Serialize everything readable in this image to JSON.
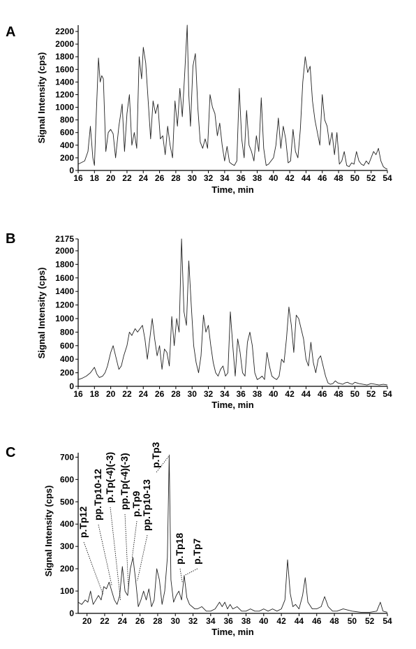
{
  "chart_data": [
    {
      "panel": "A",
      "type": "line",
      "xlabel": "Time, min",
      "ylabel": "Signal Intensity (cps)",
      "xlim": [
        16,
        54
      ],
      "ylim": [
        0,
        2300
      ],
      "xticks": [
        16,
        18,
        20,
        22,
        24,
        26,
        28,
        30,
        32,
        34,
        36,
        38,
        40,
        42,
        44,
        46,
        48,
        50,
        52,
        54
      ],
      "yticks": [
        0,
        200,
        400,
        600,
        800,
        1000,
        1200,
        1400,
        1600,
        1800,
        2000,
        2200
      ],
      "series": [
        {
          "x": [
            16.0,
            16.8,
            17.2,
            17.5,
            17.8,
            18.0,
            18.2,
            18.5,
            18.7,
            18.9,
            19.1,
            19.4,
            19.7,
            20.0,
            20.3,
            20.6,
            21.0,
            21.4,
            21.7,
            22.0,
            22.3,
            22.6,
            22.9,
            23.2,
            23.5,
            23.8,
            24.0,
            24.3,
            24.6,
            24.9,
            25.2,
            25.5,
            25.8,
            26.1,
            26.4,
            26.7,
            27.0,
            27.3,
            27.6,
            27.9,
            28.2,
            28.5,
            28.8,
            29.1,
            29.4,
            29.6,
            29.8,
            30.1,
            30.4,
            30.7,
            31.0,
            31.3,
            31.6,
            31.9,
            32.2,
            32.5,
            32.8,
            33.1,
            33.4,
            33.7,
            34.0,
            34.3,
            34.6,
            34.9,
            35.2,
            35.5,
            35.8,
            36.1,
            36.4,
            36.7,
            37.0,
            37.3,
            37.6,
            37.9,
            38.2,
            38.5,
            38.8,
            39.1,
            39.4,
            39.7,
            40.0,
            40.3,
            40.6,
            40.9,
            41.2,
            41.5,
            41.8,
            42.1,
            42.4,
            42.7,
            43.0,
            43.3,
            43.6,
            43.9,
            44.2,
            44.5,
            44.8,
            45.1,
            45.4,
            45.7,
            46.0,
            46.3,
            46.6,
            46.9,
            47.2,
            47.5,
            47.8,
            48.1,
            48.4,
            48.7,
            49.0,
            49.3,
            49.6,
            49.9,
            50.2,
            50.5,
            50.8,
            51.1,
            51.4,
            51.7,
            52.0,
            52.3,
            52.6,
            52.9,
            53.2,
            53.5,
            53.8,
            54.0
          ],
          "y": [
            100,
            150,
            300,
            700,
            200,
            80,
            800,
            1780,
            1400,
            1500,
            1450,
            300,
            600,
            650,
            580,
            200,
            700,
            1050,
            300,
            900,
            1200,
            400,
            600,
            350,
            1800,
            1450,
            1950,
            1700,
            1100,
            500,
            1100,
            900,
            1050,
            500,
            550,
            250,
            700,
            400,
            200,
            1100,
            700,
            1300,
            850,
            1550,
            2300,
            1200,
            700,
            1650,
            1850,
            1000,
            450,
            350,
            500,
            350,
            1200,
            1000,
            900,
            550,
            750,
            400,
            150,
            380,
            130,
            100,
            80,
            150,
            1300,
            500,
            200,
            950,
            400,
            300,
            150,
            550,
            300,
            1150,
            350,
            80,
            100,
            150,
            200,
            400,
            830,
            350,
            700,
            500,
            120,
            150,
            650,
            300,
            200,
            650,
            1400,
            1800,
            1550,
            1650,
            1100,
            800,
            600,
            400,
            1200,
            800,
            700,
            400,
            600,
            250,
            600,
            100,
            150,
            300,
            80,
            60,
            120,
            100,
            300,
            150,
            100,
            80,
            150,
            100,
            200,
            300,
            250,
            350,
            150,
            60,
            30,
            20
          ]
        }
      ]
    },
    {
      "panel": "B",
      "type": "line",
      "xlabel": "Time, min",
      "ylabel": "Signal Intensity (cps)",
      "xlim": [
        16,
        54
      ],
      "ylim": [
        0,
        2175
      ],
      "xticks": [
        16,
        18,
        20,
        22,
        24,
        26,
        28,
        30,
        32,
        34,
        36,
        38,
        40,
        42,
        44,
        46,
        48,
        50,
        52,
        54
      ],
      "yticks": [
        0,
        200,
        400,
        600,
        800,
        1000,
        1200,
        1400,
        1600,
        1800,
        2000,
        2175
      ],
      "series": [
        {
          "x": [
            16.0,
            16.5,
            17.0,
            17.5,
            18.0,
            18.3,
            18.6,
            19.0,
            19.3,
            19.6,
            20.0,
            20.3,
            20.6,
            21.0,
            21.3,
            21.6,
            22.0,
            22.3,
            22.6,
            23.0,
            23.3,
            23.6,
            23.9,
            24.2,
            24.5,
            24.8,
            25.1,
            25.4,
            25.7,
            26.0,
            26.3,
            26.6,
            26.9,
            27.2,
            27.5,
            27.8,
            28.1,
            28.4,
            28.7,
            29.0,
            29.3,
            29.6,
            29.9,
            30.2,
            30.5,
            30.8,
            31.1,
            31.4,
            31.7,
            32.0,
            32.3,
            32.6,
            32.9,
            33.2,
            33.5,
            33.8,
            34.1,
            34.4,
            34.7,
            35.0,
            35.3,
            35.6,
            35.9,
            36.2,
            36.5,
            36.8,
            37.1,
            37.4,
            37.7,
            38.0,
            38.3,
            38.6,
            38.9,
            39.2,
            39.5,
            39.8,
            40.1,
            40.4,
            40.7,
            41.0,
            41.3,
            41.6,
            41.9,
            42.2,
            42.5,
            42.8,
            43.1,
            43.4,
            43.7,
            44.0,
            44.3,
            44.6,
            44.9,
            45.2,
            45.5,
            45.8,
            46.1,
            46.4,
            46.7,
            47.0,
            47.3,
            47.6,
            47.9,
            48.2,
            48.5,
            48.8,
            49.1,
            49.4,
            49.7,
            50.0,
            50.5,
            51.0,
            51.5,
            52.0,
            52.5,
            53.0,
            53.5,
            54.0
          ],
          "y": [
            100,
            120,
            150,
            200,
            280,
            180,
            130,
            150,
            200,
            300,
            500,
            600,
            450,
            250,
            300,
            450,
            600,
            800,
            750,
            850,
            800,
            850,
            900,
            700,
            400,
            700,
            1000,
            700,
            450,
            600,
            250,
            550,
            500,
            300,
            1030,
            600,
            1000,
            800,
            2175,
            1100,
            900,
            1850,
            1200,
            600,
            350,
            200,
            450,
            1050,
            800,
            900,
            600,
            350,
            200,
            150,
            250,
            300,
            150,
            200,
            1100,
            600,
            150,
            700,
            500,
            200,
            150,
            650,
            800,
            600,
            200,
            100,
            120,
            150,
            100,
            500,
            300,
            150,
            120,
            100,
            150,
            400,
            350,
            700,
            1170,
            900,
            500,
            1050,
            1000,
            850,
            700,
            400,
            300,
            650,
            350,
            200,
            400,
            450,
            300,
            150,
            50,
            30,
            40,
            80,
            50,
            40,
            30,
            50,
            60,
            40,
            30,
            60,
            40,
            30,
            20,
            40,
            30,
            20,
            30,
            20
          ]
        }
      ]
    },
    {
      "panel": "C",
      "type": "line",
      "xlabel": "Time, min",
      "ylabel": "Signal Intensity (cps)",
      "xlim": [
        19,
        54
      ],
      "ylim": [
        0,
        720
      ],
      "xticks": [
        20,
        22,
        24,
        26,
        28,
        30,
        32,
        34,
        36,
        38,
        40,
        42,
        44,
        46,
        48,
        50,
        52,
        54
      ],
      "yticks": [
        0,
        100,
        200,
        300,
        400,
        500,
        600,
        700
      ],
      "series": [
        {
          "x": [
            19.0,
            19.4,
            19.8,
            20.1,
            20.4,
            20.7,
            21.0,
            21.3,
            21.6,
            21.9,
            22.2,
            22.5,
            22.8,
            23.1,
            23.4,
            23.7,
            24.0,
            24.3,
            24.6,
            24.9,
            25.2,
            25.5,
            25.8,
            26.1,
            26.4,
            26.7,
            27.0,
            27.3,
            27.6,
            27.9,
            28.2,
            28.5,
            28.8,
            29.1,
            29.3,
            29.5,
            29.8,
            30.1,
            30.4,
            30.7,
            31.0,
            31.3,
            31.6,
            31.9,
            32.2,
            32.5,
            33.0,
            33.5,
            34.0,
            34.5,
            35.0,
            35.3,
            35.6,
            35.9,
            36.2,
            36.5,
            37.0,
            37.5,
            38.0,
            38.5,
            39.0,
            39.5,
            40.0,
            40.5,
            41.0,
            41.5,
            42.0,
            42.4,
            42.7,
            43.0,
            43.3,
            43.6,
            44.0,
            44.4,
            44.7,
            45.0,
            45.5,
            46.0,
            46.5,
            46.9,
            47.3,
            47.8,
            48.3,
            49.0,
            50.0,
            51.0,
            52.0,
            52.8,
            53.2,
            53.5,
            54.0
          ],
          "y": [
            50,
            40,
            60,
            50,
            100,
            40,
            60,
            80,
            60,
            120,
            110,
            140,
            100,
            60,
            40,
            80,
            210,
            100,
            80,
            200,
            250,
            150,
            30,
            60,
            100,
            60,
            110,
            30,
            60,
            200,
            150,
            40,
            100,
            250,
            710,
            150,
            50,
            80,
            100,
            60,
            170,
            70,
            40,
            30,
            20,
            20,
            30,
            10,
            10,
            20,
            50,
            30,
            50,
            20,
            40,
            20,
            30,
            10,
            10,
            20,
            10,
            10,
            20,
            10,
            20,
            10,
            20,
            60,
            240,
            90,
            30,
            40,
            20,
            80,
            160,
            50,
            20,
            20,
            30,
            75,
            30,
            10,
            10,
            20,
            10,
            5,
            5,
            10,
            50,
            10,
            5
          ]
        }
      ],
      "annotations": [
        {
          "text": "p.Tp12",
          "x": 21.8,
          "y": 80
        },
        {
          "text": "pp.Tp10-12",
          "x": 22.8,
          "y": 120
        },
        {
          "text": "p.Tp(-4)(-3)",
          "x": 23.8,
          "y": 50
        },
        {
          "text": "pp.Tp(-4)(-3)",
          "x": 24.7,
          "y": 100
        },
        {
          "text": "p.Tp9",
          "x": 25.1,
          "y": 240
        },
        {
          "text": "pp.Tp10-13",
          "x": 25.7,
          "y": 140
        },
        {
          "text": "p.Tp3",
          "x": 29.3,
          "y": 700
        },
        {
          "text": "p.Tp18",
          "x": 30.8,
          "y": 130
        },
        {
          "text": "p.Tp7",
          "x": 31.1,
          "y": 165
        }
      ]
    }
  ]
}
